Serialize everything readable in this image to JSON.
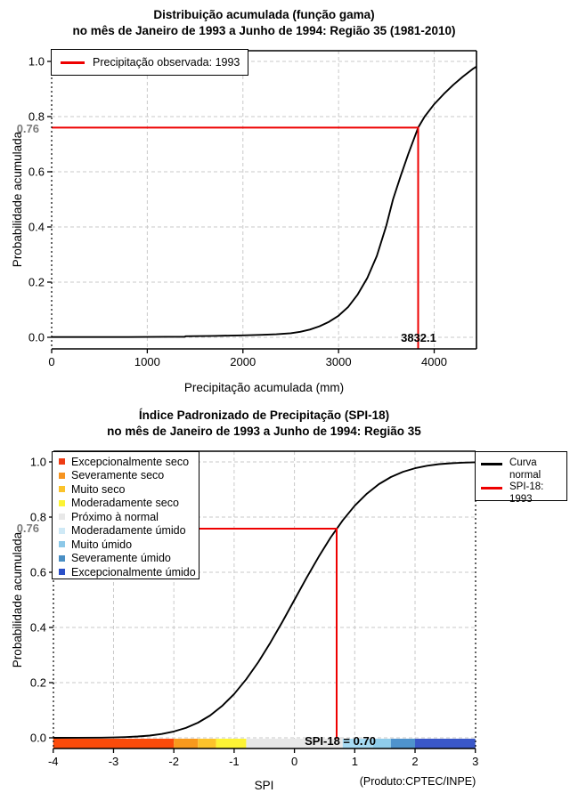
{
  "charts": [
    {
      "title_line1": "Distribuição acumulada (função gama)",
      "title_line2": "no mês de Janeiro de 1993 a Junho de 1994: Região 35 (1981-2010)",
      "ylabel": "Probabilidade acumulada",
      "xlabel": "Precipitação acumulada (mm)",
      "legend_label": "Precipitação observada: 1993",
      "ref_y_label": "0.76",
      "ref_x_label": "3832.1",
      "chart_data": {
        "type": "line",
        "title": "Distribuição acumulada (função gama) no mês de Janeiro de 1993 a Junho de 1994: Região 35 (1981-2010)",
        "xlabel": "Precipitação acumulada (mm)",
        "ylabel": "Probabilidade acumulada",
        "xlim": [
          0,
          4450
        ],
        "ylim": [
          0,
          1
        ],
        "grid": true,
        "x_ticks": [
          "0",
          "1000",
          "2000",
          "3000",
          "4000"
        ],
        "x_tick_values": [
          0,
          1000,
          2000,
          3000,
          4000
        ],
        "y_ticks": [
          "0.0",
          "0.2",
          "0.4",
          "0.6",
          "0.8",
          "1.0"
        ],
        "y_tick_values": [
          0,
          0.2,
          0.4,
          0.6,
          0.8,
          1.0
        ],
        "series": [
          {
            "name": "gamma-cdf",
            "color": "#000000",
            "x": [
              0,
              400,
              800,
              1200,
              1390,
              1400,
              1700,
              2000,
              2200,
              2350,
              2500,
              2600,
              2700,
              2800,
              2900,
              3000,
              3100,
              3200,
              3300,
              3400,
              3500,
              3570,
              3650,
              3730,
              3832,
              3900,
              4000,
              4100,
              4200,
              4300,
              4400,
              4440
            ],
            "y": [
              0.001,
              0.001,
              0.001,
              0.002,
              0.002,
              0.004,
              0.005,
              0.007,
              0.009,
              0.011,
              0.015,
              0.02,
              0.028,
              0.04,
              0.056,
              0.078,
              0.11,
              0.155,
              0.215,
              0.295,
              0.405,
              0.5,
              0.585,
              0.665,
              0.76,
              0.8,
              0.845,
              0.882,
              0.915,
              0.945,
              0.972,
              0.981
            ]
          }
        ],
        "reference": {
          "x": 3832.1,
          "y": 0.76,
          "color": "#ee0000"
        }
      }
    },
    {
      "title_line1": "Índice Padronizado de Precipitação (SPI-18)",
      "title_line2": "no mês de Janeiro de 1993 a Junho de 1994: Região 35",
      "ylabel": "Probabilidade acumulada",
      "xlabel": "SPI",
      "footnote": "(Produto:CPTEC/INPE)",
      "ref_y_label": "0.76",
      "bar_label": "SPI-18 = 0.70",
      "categories": [
        {
          "label": "Excepcionalmente seco",
          "color": "#ee3c14"
        },
        {
          "label": "Severamente seco",
          "color": "#f69421"
        },
        {
          "label": "Muito seco",
          "color": "#fbc32b"
        },
        {
          "label": "Moderadamente seco",
          "color": "#fcf335"
        },
        {
          "label": "Próximo à normal",
          "color": "#e8e8e8"
        },
        {
          "label": "Moderadamente úmido",
          "color": "#cfe9f6"
        },
        {
          "label": "Muito úmido",
          "color": "#8cc8e8"
        },
        {
          "label": "Severamente úmido",
          "color": "#4a8fc4"
        },
        {
          "label": "Excepcionalmente úmido",
          "color": "#2b50c8"
        }
      ],
      "right_legend": [
        {
          "label": "Curva normal",
          "color": "#000000"
        },
        {
          "label": "SPI-18: 1993",
          "color": "#ee0000"
        }
      ],
      "chart_data": {
        "type": "line",
        "title": "Índice Padronizado de Precipitação (SPI-18) no mês de Janeiro de 1993 a Junho de 1994: Região 35",
        "xlabel": "SPI",
        "ylabel": "Probabilidade acumulada",
        "xlim": [
          -4,
          3
        ],
        "ylim": [
          0,
          1
        ],
        "grid": true,
        "x_ticks": [
          "-4",
          "-3",
          "-2",
          "-1",
          "0",
          "1",
          "2",
          "3"
        ],
        "x_tick_values": [
          -4,
          -3,
          -2,
          -1,
          0,
          1,
          2,
          3
        ],
        "y_ticks": [
          "0.0",
          "0.2",
          "0.4",
          "0.6",
          "0.8",
          "1.0"
        ],
        "y_tick_values": [
          0,
          0.2,
          0.4,
          0.6,
          0.8,
          1.0
        ],
        "series": [
          {
            "name": "normal-cdf",
            "color": "#000000",
            "x": [
              -4,
              -3.6,
              -3.2,
              -3,
              -2.8,
              -2.6,
              -2.4,
              -2.2,
              -2,
              -1.8,
              -1.6,
              -1.4,
              -1.2,
              -1,
              -0.8,
              -0.6,
              -0.4,
              -0.2,
              0,
              0.2,
              0.4,
              0.6,
              0.8,
              1,
              1.2,
              1.4,
              1.6,
              1.8,
              2,
              2.2,
              2.4,
              2.6,
              2.8,
              3
            ],
            "y": [
              0.0001,
              0.0002,
              0.0007,
              0.0013,
              0.0026,
              0.0047,
              0.0082,
              0.0139,
              0.0228,
              0.0359,
              0.0548,
              0.0808,
              0.1151,
              0.1587,
              0.2119,
              0.2743,
              0.3446,
              0.4207,
              0.5,
              0.5793,
              0.6554,
              0.7257,
              0.7881,
              0.8413,
              0.8849,
              0.9192,
              0.9452,
              0.9641,
              0.9772,
              0.9861,
              0.9918,
              0.9953,
              0.9974,
              0.9987
            ]
          }
        ],
        "reference": {
          "x": 0.7,
          "y": 0.758,
          "color": "#ee0000"
        },
        "bar_segments": [
          {
            "from": -4,
            "to": -2,
            "color": "#fb4b0b",
            "category": "Excepcionalmente seco"
          },
          {
            "from": -2,
            "to": -1.6,
            "color": "#f8991d",
            "category": "Severamente seco"
          },
          {
            "from": -1.6,
            "to": -1.3,
            "color": "#fcc32b",
            "category": "Muito seco"
          },
          {
            "from": -1.3,
            "to": -0.8,
            "color": "#fdf335",
            "category": "Moderadamente seco"
          },
          {
            "from": -0.8,
            "to": 0.8,
            "color": "#e8e8e8",
            "category": "Próximo à normal"
          },
          {
            "from": 0.8,
            "to": 1.3,
            "color": "#a6daf3",
            "category": "Moderadamente úmido"
          },
          {
            "from": 1.3,
            "to": 1.6,
            "color": "#8fccea",
            "category": "Muito úmido"
          },
          {
            "from": 1.6,
            "to": 2,
            "color": "#4f93cd",
            "category": "Severamente úmido"
          },
          {
            "from": 2,
            "to": 3,
            "color": "#3a57c8",
            "category": "Excepcionalmente úmido"
          }
        ]
      }
    }
  ]
}
